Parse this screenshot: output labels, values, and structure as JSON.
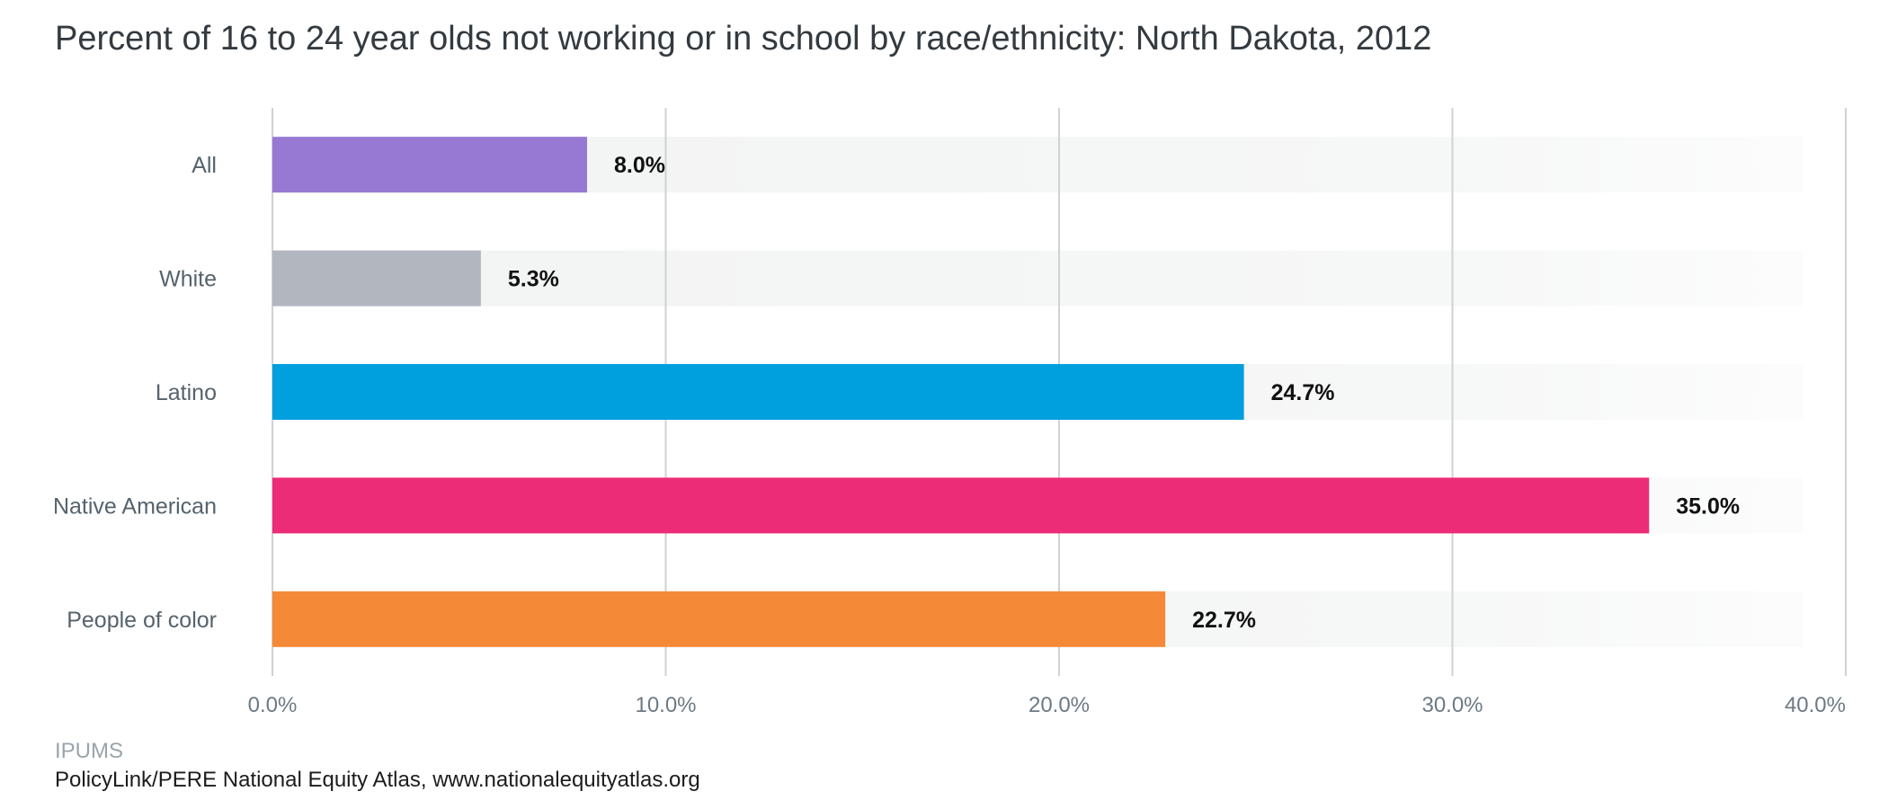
{
  "chart_data": {
    "type": "bar",
    "orientation": "horizontal",
    "title": "Percent of 16 to 24 year olds not working or in school by race/ethnicity: North Dakota, 2012",
    "categories": [
      "All",
      "White",
      "Latino",
      "Native American",
      "People of color"
    ],
    "values": [
      8.0,
      5.3,
      24.7,
      35.0,
      22.7
    ],
    "data_labels": [
      "8.0%",
      "5.3%",
      "24.7%",
      "35.0%",
      "22.7%"
    ],
    "colors": [
      "#9779d3",
      "#b2b6be",
      "#009fde",
      "#ec2c76",
      "#f48a37"
    ],
    "xlim": [
      0,
      40
    ],
    "xticks": [
      0,
      10,
      20,
      30,
      40
    ],
    "xtick_labels": [
      "0.0%",
      "10.0%",
      "20.0%",
      "30.0%",
      "40.0%"
    ],
    "grid": true
  },
  "footer": {
    "source": "IPUMS",
    "credit": "PolicyLink/PERE National Equity Atlas, www.nationalequityatlas.org"
  }
}
